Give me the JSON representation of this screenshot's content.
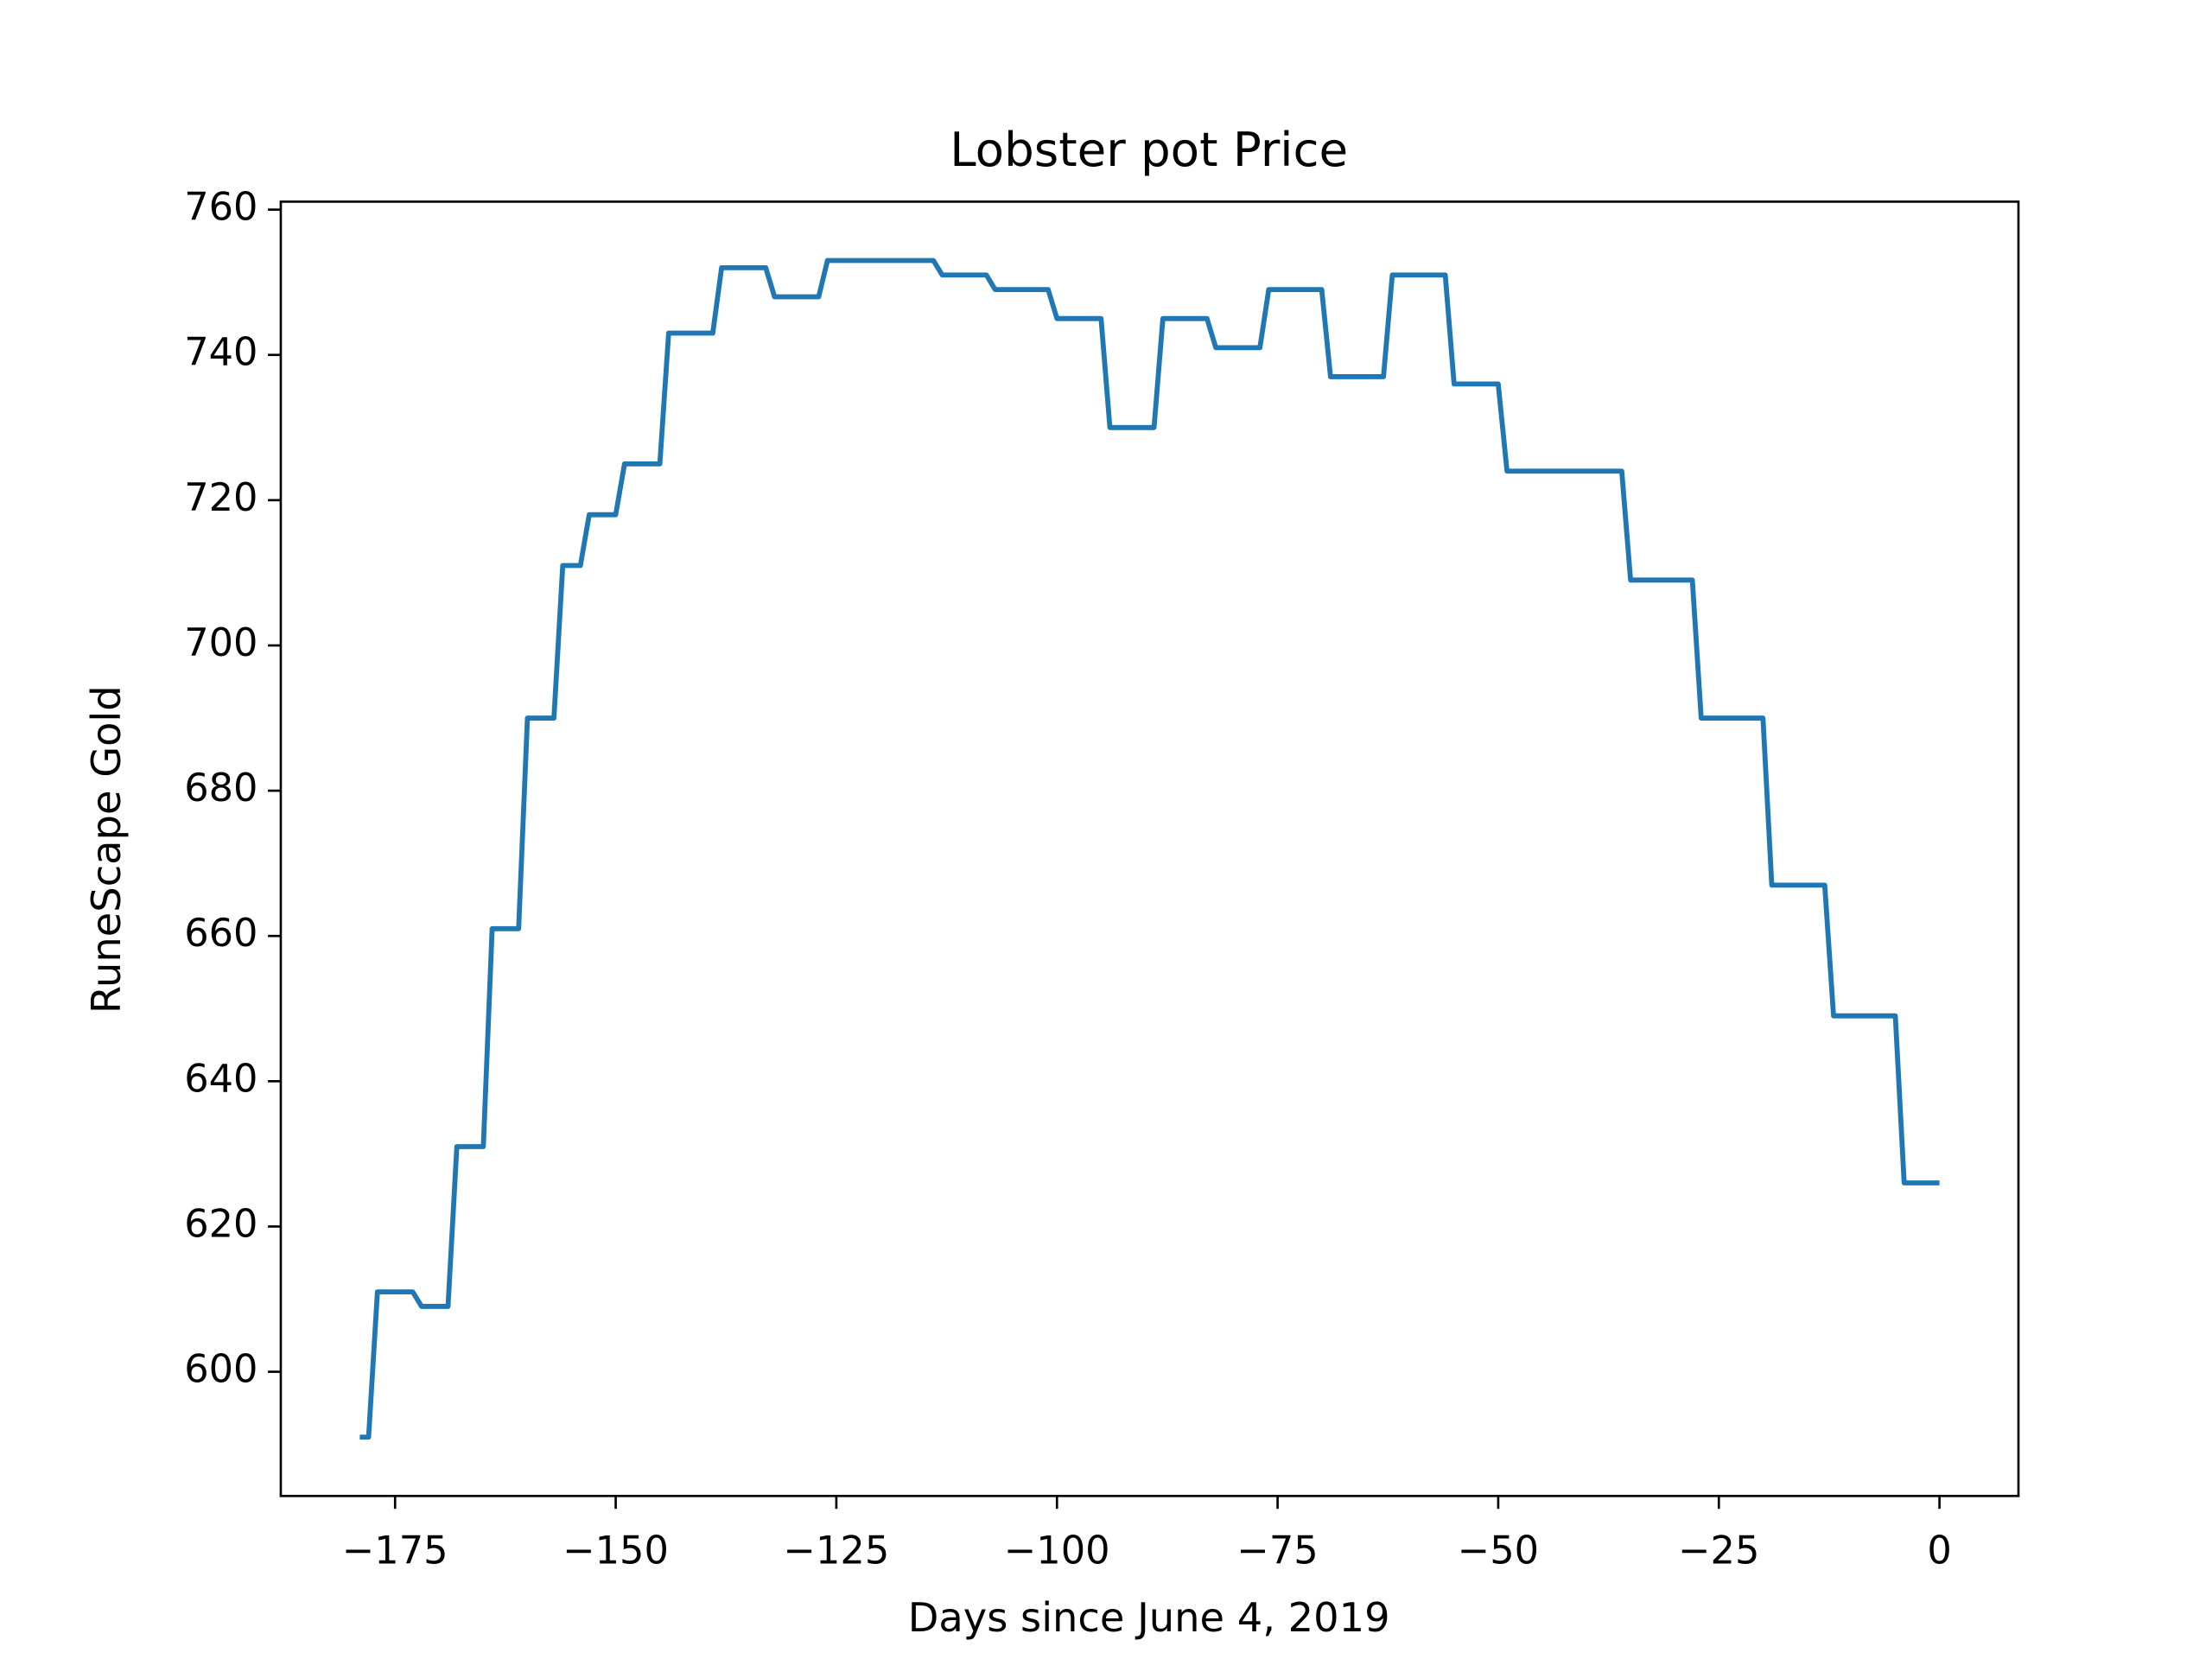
{
  "chart_data": {
    "type": "line",
    "title": "Lobster pot Price",
    "xlabel": "Days since June 4, 2019",
    "ylabel": "RuneScape Gold",
    "x": [
      -179,
      -178,
      -177,
      -173,
      -172,
      -169,
      -168,
      -165,
      -164,
      -161,
      -160,
      -157,
      -156,
      -154,
      -153,
      -150,
      -149,
      -145,
      -144,
      -139,
      -138,
      -133,
      -132,
      -127,
      -126,
      -114,
      -113,
      -108,
      -107,
      -101,
      -100,
      -95,
      -94,
      -89,
      -88,
      -83,
      -82,
      -77,
      -76,
      -70,
      -69,
      -63,
      -62,
      -56,
      -55,
      -50,
      -49,
      -36,
      -35,
      -28,
      -27,
      -20,
      -19,
      -13,
      -12,
      -5,
      -4,
      0
    ],
    "series": [
      {
        "name": "Lobster pot",
        "color": "#1f77b4",
        "values": [
          591,
          591,
          611,
          611,
          609,
          609,
          631,
          631,
          661,
          661,
          690,
          690,
          711,
          711,
          718,
          718,
          725,
          725,
          743,
          743,
          752,
          752,
          748,
          748,
          753,
          753,
          751,
          751,
          749,
          749,
          745,
          745,
          730,
          730,
          745,
          745,
          741,
          741,
          749,
          749,
          737,
          737,
          751,
          751,
          736,
          736,
          724,
          724,
          709,
          709,
          690,
          690,
          667,
          667,
          649,
          649,
          626,
          626
        ]
      }
    ],
    "xlim": [
      -187.95,
      8.95
    ],
    "xticks": [
      {
        "value": -175,
        "label": "−175"
      },
      {
        "value": -150,
        "label": "−150"
      },
      {
        "value": -125,
        "label": "−125"
      },
      {
        "value": -100,
        "label": "−100"
      },
      {
        "value": -75,
        "label": "−75"
      },
      {
        "value": -50,
        "label": "−50"
      },
      {
        "value": -25,
        "label": "−25"
      },
      0
    ],
    "ylim": [
      582.9,
      761.1
    ],
    "yticks": [
      600,
      620,
      640,
      660,
      680,
      700,
      720,
      740,
      760
    ],
    "grid": false
  }
}
